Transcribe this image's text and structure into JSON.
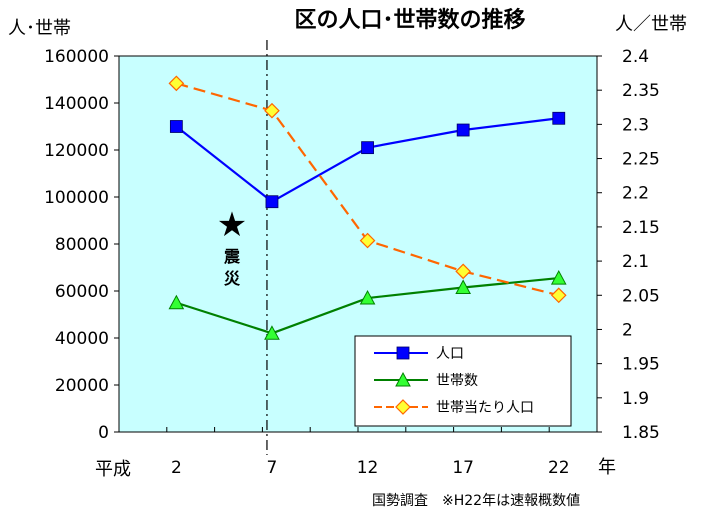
{
  "chart_data": {
    "type": "line",
    "title": "区の人口･世帯数の推移",
    "ylabel_left": "人･世帯",
    "ylabel_right": "人／世帯",
    "xlabel_prefix": "平成",
    "xlabel_unit": "年",
    "x": [
      2,
      7,
      12,
      17,
      22
    ],
    "x_tick_labels": [
      "2",
      "7",
      "12",
      "17",
      "22"
    ],
    "ylim_left": [
      0,
      160000
    ],
    "yticks_left": [
      "0",
      "20000",
      "40000",
      "60000",
      "80000",
      "100000",
      "120000",
      "140000",
      "160000"
    ],
    "ylim_right": [
      1.85,
      2.4
    ],
    "yticks_right": [
      "1.85",
      "1.9",
      "1.95",
      "2",
      "2.05",
      "2.1",
      "2.15",
      "2.2",
      "2.25",
      "2.3",
      "2.35",
      "2.4"
    ],
    "series": [
      {
        "name": "人口",
        "axis": "left",
        "values": [
          130000,
          98000,
          121000,
          128500,
          133500
        ],
        "color": "#0000ff",
        "marker": "square",
        "dash": false
      },
      {
        "name": "世帯数",
        "axis": "left",
        "values": [
          55000,
          42000,
          57000,
          61500,
          65500
        ],
        "color": "#008000",
        "marker": "triangle",
        "dash": false
      },
      {
        "name": "世帯当たり人口",
        "axis": "right",
        "values": [
          2.36,
          2.32,
          2.13,
          2.085,
          2.05
        ],
        "color": "#ff6600",
        "marker": "diamond",
        "dash": true
      }
    ],
    "event": {
      "x": 7,
      "label": "震災",
      "marker": "★"
    },
    "legend_position": "bottom-right",
    "plot_background": "#c8ffff",
    "grid": false
  },
  "footnote": "国勢調査　※H22年は速報概数値"
}
